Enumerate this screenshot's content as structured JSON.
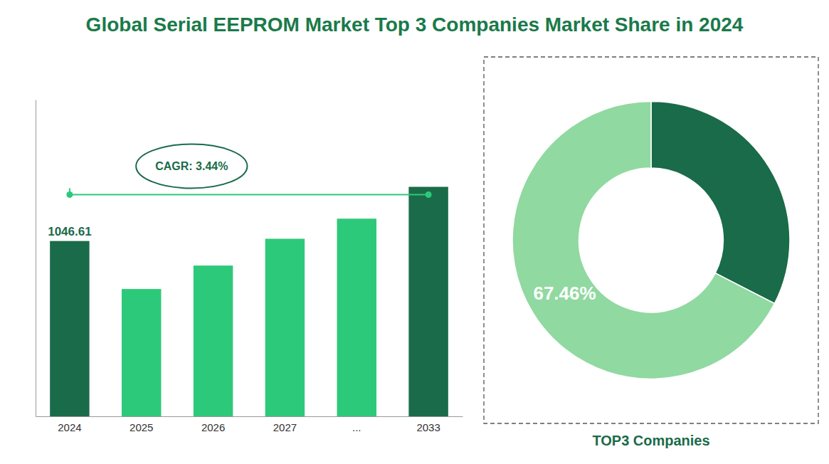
{
  "title": "Global Serial EEPROM Market Top 3 Companies Market Share in 2024",
  "title_color": "#1a7a4a",
  "chart_data": [
    {
      "type": "bar",
      "categories": [
        "2024",
        "2025",
        "2026",
        "2027",
        "...",
        "2033"
      ],
      "values": [
        1046.61,
        760,
        900,
        1060,
        1180,
        1370
      ],
      "value_labels": [
        "1046.61",
        null,
        null,
        null,
        null,
        null
      ],
      "data_labels": true,
      "colors": [
        "#1a6b4a",
        "#2dc97a",
        "#2dc97a",
        "#2dc97a",
        "#2dc97a",
        "#1a6b4a"
      ],
      "ylim": [
        0,
        1890.6
      ],
      "tick_labels": "x",
      "grid": false,
      "annotations": [
        {
          "text": "CAGR: 3.44%",
          "color": "#1a6b4a",
          "line_color": "#2dc97a"
        }
      ]
    },
    {
      "type": "donut",
      "title": "TOP3 Companies",
      "values": [
        32.54,
        67.46
      ],
      "value_labels": [
        null,
        "67.46%"
      ],
      "data_labels": true,
      "colors": [
        "#1a6b4a",
        "#90d9a0"
      ]
    }
  ]
}
